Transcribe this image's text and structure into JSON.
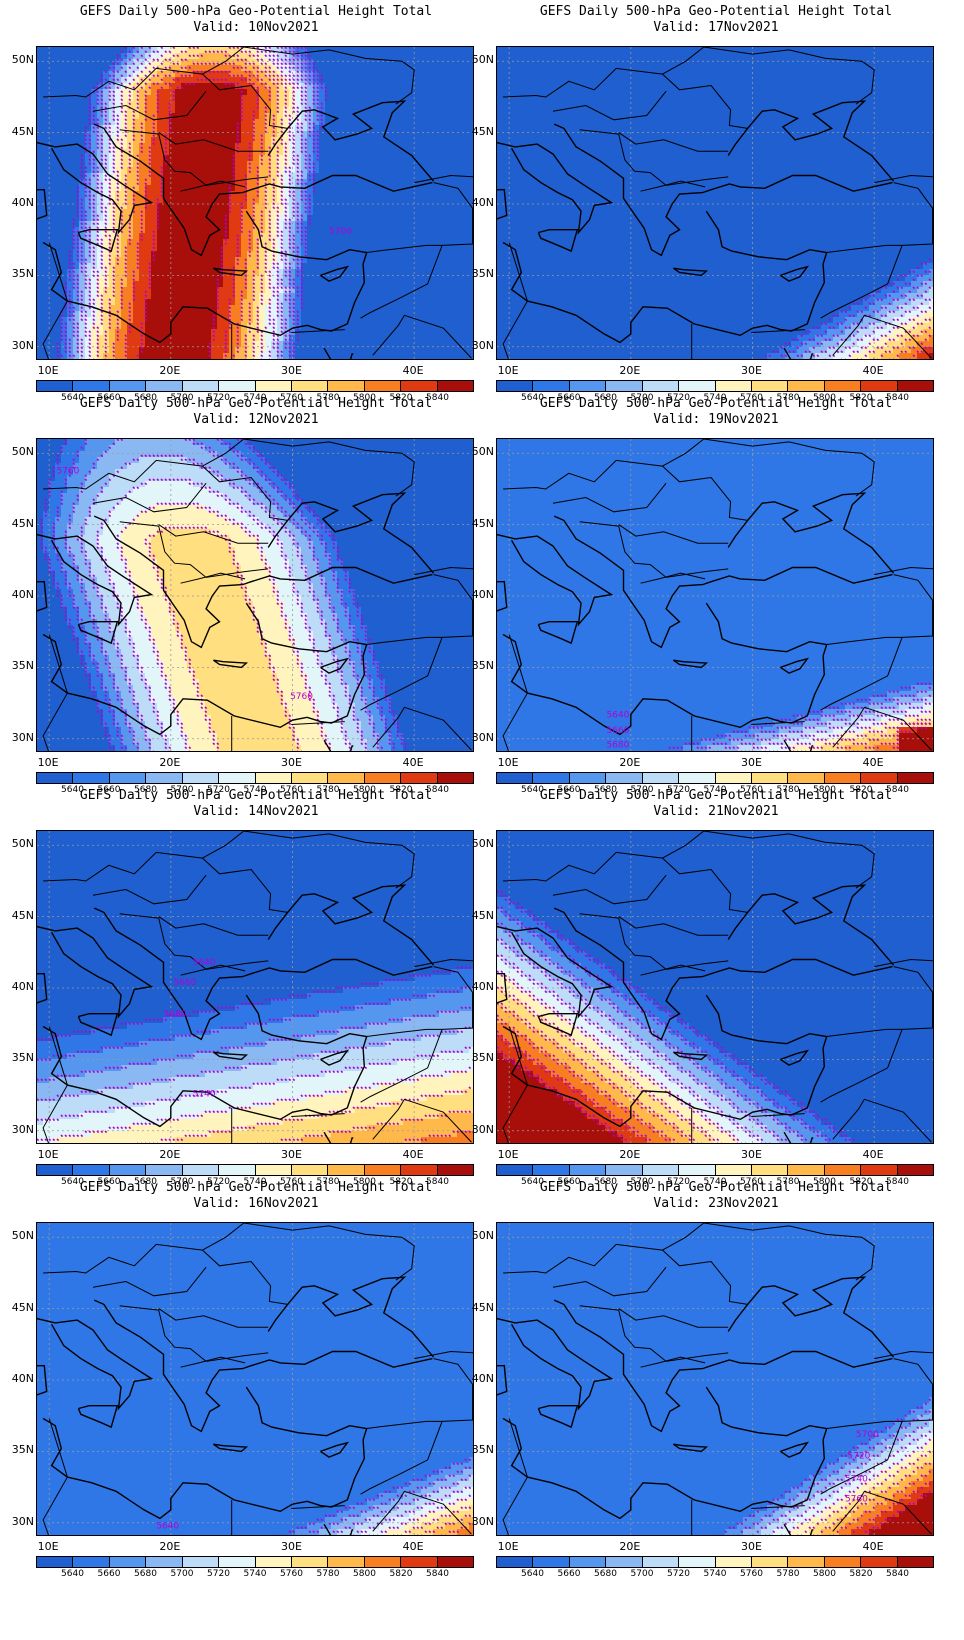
{
  "panels": [
    {
      "title": "GEFS Daily 500-hPa Geo-Potential Height Total",
      "valid": "Valid:  10Nov2021",
      "pattern": "ridge_strong",
      "contour_labels": [
        "5700"
      ]
    },
    {
      "title": "GEFS Daily 500-hPa Geo-Potential Height Total",
      "valid": "Valid:  17Nov2021",
      "pattern": "trough_se",
      "contour_labels": []
    },
    {
      "title": "GEFS Daily 500-hPa Geo-Potential Height Total",
      "valid": "Valid:  12Nov2021",
      "pattern": "ridge_moderate",
      "contour_labels": [
        "5760",
        "5760"
      ]
    },
    {
      "title": "GEFS Daily 500-hPa Geo-Potential Height Total",
      "valid": "Valid:  19Nov2021",
      "pattern": "trough_s",
      "contour_labels": [
        "5640",
        "5660",
        "5680"
      ]
    },
    {
      "title": "GEFS Daily 500-hPa Geo-Potential Height Total",
      "valid": "Valid:  14Nov2021",
      "pattern": "mixed",
      "contour_labels": [
        "5640",
        "5660",
        "5680",
        "5740"
      ]
    },
    {
      "title": "GEFS Daily 500-hPa Geo-Potential Height Total",
      "valid": "Valid:  21Nov2021",
      "pattern": "trough_sw",
      "contour_labels": []
    },
    {
      "title": "GEFS Daily 500-hPa Geo-Potential Height Total",
      "valid": "Valid:  16Nov2021",
      "pattern": "trough_se_weak",
      "contour_labels": [
        "5640"
      ]
    },
    {
      "title": "GEFS Daily 500-hPa Geo-Potential Height Total",
      "valid": "Valid:  23Nov2021",
      "pattern": "trough_se_strong",
      "contour_labels": [
        "5700",
        "5720",
        "5740",
        "5760"
      ]
    }
  ],
  "lat_labels": [
    "50N",
    "45N",
    "40N",
    "35N",
    "30N"
  ],
  "lon_labels": [
    "10E",
    "20E",
    "30E",
    "40E"
  ],
  "colorbar": {
    "labels": [
      "5640",
      "5660",
      "5680",
      "5700",
      "5720",
      "5740",
      "5760",
      "5780",
      "5800",
      "5820",
      "5840"
    ],
    "colors": [
      "#1f5fcf",
      "#2f77e6",
      "#5596ee",
      "#8ab8f2",
      "#bcdcf8",
      "#e2f6fa",
      "#fff4bd",
      "#ffdf80",
      "#ffb84a",
      "#f77f22",
      "#df3a12",
      "#a80e0a"
    ]
  },
  "contour_color": "#b400d8"
}
